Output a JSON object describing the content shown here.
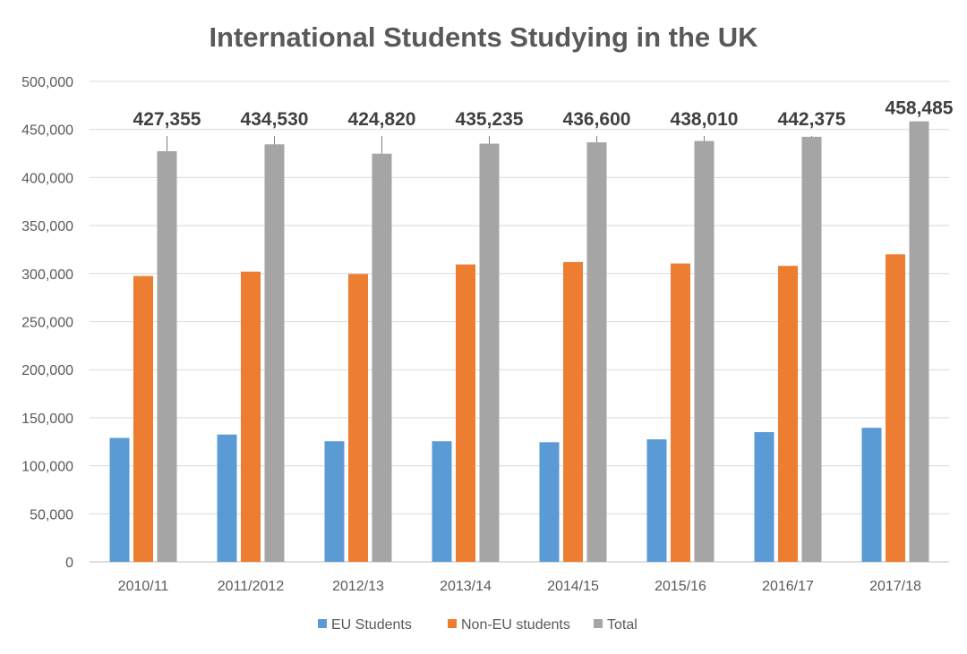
{
  "chart_data": {
    "type": "bar",
    "title": "International Students Studying in the UK",
    "xlabel": "",
    "ylabel": "",
    "ylim": [
      0,
      500000
    ],
    "yticks": [
      0,
      50000,
      100000,
      150000,
      200000,
      250000,
      300000,
      350000,
      400000,
      450000,
      500000
    ],
    "ytick_labels": [
      "0",
      "50,000",
      "100,000",
      "150,000",
      "200,000",
      "250,000",
      "300,000",
      "350,000",
      "400,000",
      "450,000",
      "500,000"
    ],
    "grid": true,
    "legend_position": "bottom",
    "categories": [
      "2010/11",
      "2011/2012",
      "2012/13",
      "2013/14",
      "2014/15",
      "2015/16",
      "2016/17",
      "2017/18"
    ],
    "series": [
      {
        "name": "EU Students",
        "color": "#5b9bd5",
        "values": [
          129000,
          132500,
          125500,
          125500,
          124500,
          127500,
          135000,
          139500
        ]
      },
      {
        "name": "Non-EU students",
        "color": "#ed7d31",
        "values": [
          297500,
          302000,
          299500,
          309500,
          312000,
          310500,
          308000,
          320000
        ]
      },
      {
        "name": "Total",
        "color": "#a5a5a5",
        "values": [
          427355,
          434530,
          424820,
          435235,
          436600,
          438010,
          442375,
          458485
        ]
      }
    ],
    "data_labels": [
      "427,355",
      "434,530",
      "424,820",
      "435,235",
      "436,600",
      "438,010",
      "442,375",
      "458,485"
    ]
  }
}
